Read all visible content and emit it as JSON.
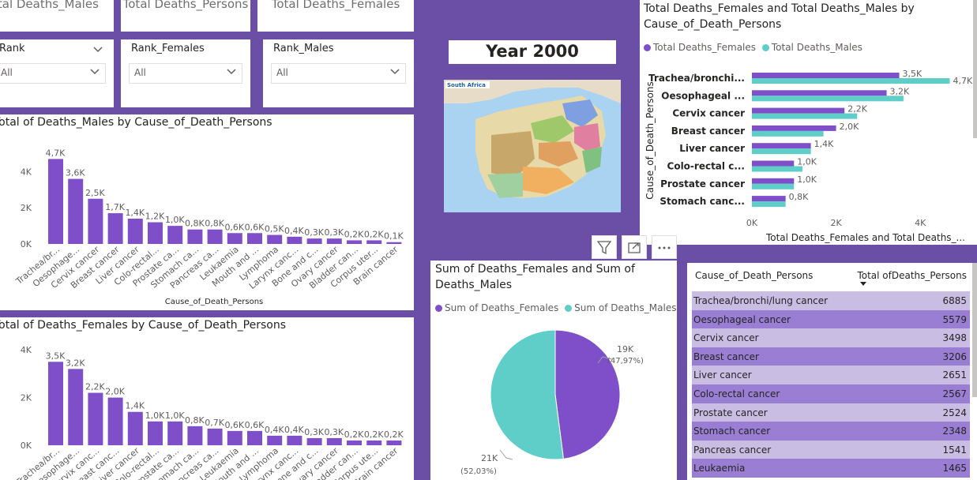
{
  "kpis": [
    "Total Deaths_Males",
    "Total Deaths_Persons",
    "Total Deaths_Females"
  ],
  "slicers": [
    {
      "label": "Rank",
      "value": "All"
    },
    {
      "label": "Rank_Females",
      "value": "All"
    },
    {
      "label": "Rank_Males",
      "value": "All"
    }
  ],
  "year_title": "Year 2000",
  "map_label": "South Africa",
  "colors": {
    "females": "#7E4FC9",
    "males": "#5FCDC8",
    "background": "#6B4FA6"
  },
  "males_chart": {
    "title": "Total of Deaths_Males by Cause_of_Death_Persons",
    "xlabel": "Cause_of_Death_Persons",
    "ticks": [
      "4K",
      "2K",
      "0K"
    ]
  },
  "females_chart": {
    "title": "Total of Deaths_Females by Cause_of_Death_Persons",
    "ticks": [
      "4K",
      "2K",
      "0K"
    ]
  },
  "hbar_chart": {
    "title_line1": "Total Deaths_Females and Total Deaths_Males by",
    "title_line2": "Cause_of_Death_Persons",
    "legend_females": "Total Deaths_Females",
    "legend_males": "Total  Deaths_Males",
    "ylabel": "Cause_of_Death_Persons",
    "xlabel": "Total Deaths_Females and Total Deaths_...",
    "xticks": [
      "0K",
      "2K",
      "4K"
    ]
  },
  "pie_chart": {
    "title_line1": "Sum of Deaths_Females and Sum of",
    "title_line2": "Deaths_Males",
    "legend_females": "Sum of Deaths_Females",
    "legend_males": "Sum of Deaths_Males",
    "females_label": "19K",
    "females_pct": "(47,97%)",
    "males_label": "21K",
    "males_pct": "(52,03%)"
  },
  "table": {
    "col1": "Cause_of_Death_Persons",
    "col2": "Total ofDeaths_Persons",
    "rows": [
      {
        "cause": "Trachea/bronchi/lung cancer",
        "total": "6885"
      },
      {
        "cause": "Oesophageal cancer",
        "total": "5579"
      },
      {
        "cause": "Cervix cancer",
        "total": "3498"
      },
      {
        "cause": "Breast cancer",
        "total": "3206"
      },
      {
        "cause": "Liver cancer",
        "total": "2651"
      },
      {
        "cause": "Colo-rectal cancer",
        "total": "2567"
      },
      {
        "cause": "Prostate cancer",
        "total": "2524"
      },
      {
        "cause": "Stomach cancer",
        "total": "2348"
      },
      {
        "cause": "Pancreas cancer",
        "total": "1541"
      },
      {
        "cause": "Leukaemia",
        "total": "1465"
      }
    ]
  },
  "chart_data": [
    {
      "type": "bar",
      "title": "Total of Deaths_Males by Cause_of_Death_Persons",
      "xlabel": "Cause_of_Death_Persons",
      "ylim": [
        0,
        5000
      ],
      "categories": [
        "Trachea/br...",
        "Oesophage...",
        "Cervix cancer",
        "Breast cancer",
        "Liver cancer",
        "Colo-rectal...",
        "Prostate ca...",
        "Stomach ca...",
        "Pancreas ca...",
        "Leukaemia",
        "Mouth and ...",
        "Lymphoma",
        "Larynx canc...",
        "Bone and c...",
        "Ovary cancer",
        "Bladder can...",
        "Corpus uter...",
        "Brain cancer"
      ],
      "values": [
        4700,
        3600,
        2500,
        1700,
        1400,
        1200,
        1000,
        800,
        800,
        600,
        600,
        500,
        400,
        300,
        300,
        200,
        200,
        100
      ],
      "labels": [
        "4,7K",
        "3,6K",
        "2,5K",
        "1,7K",
        "1,4K",
        "1,2K",
        "1,0K",
        "0,8K",
        "0,8K",
        "0,6K",
        "0,6K",
        "0,5K",
        "0,4K",
        "0,3K",
        "0,3K",
        "0,2K",
        "0,2K",
        "0,1K"
      ]
    },
    {
      "type": "bar",
      "title": "Total of Deaths_Females by Cause_of_Death_Persons",
      "ylim": [
        0,
        4500
      ],
      "categories": [
        "Trachea/br...",
        "Oesophage...",
        "Cervix canc...",
        "Breast canc...",
        "Liver cancer",
        "Colo-rectal...",
        "Prostate ca...",
        "Stomach ca...",
        "Pancreas ca...",
        "Leukaemia",
        "Mouth and ...",
        "Lymphoma",
        "Larynx canc...",
        "Bone and c...",
        "Ovary cancer",
        "Bladder can...",
        "Corpus ute...",
        "Brain cancer"
      ],
      "values": [
        3500,
        3200,
        2200,
        2000,
        1400,
        1000,
        1000,
        800,
        700,
        600,
        600,
        400,
        400,
        300,
        300,
        200,
        200,
        200
      ],
      "labels": [
        "3,5K",
        "3,2K",
        "2,2K",
        "2,0K",
        "1,4K",
        "1,0K",
        "1,0K",
        "0,8K",
        "0,7K",
        "0,6K",
        "0,6K",
        "0,4K",
        "0,4K",
        "0,3K",
        "0,3K",
        "0,2K",
        "0,2K",
        "0,2K"
      ]
    },
    {
      "type": "bar",
      "orientation": "horizontal",
      "title": "Total Deaths_Females and Total Deaths_Males by Cause_of_Death_Persons",
      "xlim": [
        0,
        5000
      ],
      "categories": [
        "Trachea/bronchi...",
        "Oesophageal ...",
        "Cervix cancer",
        "Breast cancer",
        "Liver cancer",
        "Colo-rectal c...",
        "Prostate cancer",
        "Stomach canc..."
      ],
      "series": [
        {
          "name": "Total Deaths_Females",
          "values": [
            3500,
            3200,
            2200,
            2000,
            1400,
            1000,
            1000,
            800
          ],
          "labels": [
            "3,5K",
            "3,2K",
            "2,2K",
            "2,0K",
            "1,4K",
            "1,0K",
            "1,0K",
            "0,8K"
          ]
        },
        {
          "name": "Total  Deaths_Males",
          "values": [
            4700,
            3600,
            2500,
            1700,
            1400,
            1200,
            1000,
            800
          ],
          "labels": [
            "4,7K",
            "",
            "",
            "",
            "",
            "",
            "",
            ""
          ]
        }
      ]
    },
    {
      "type": "pie",
      "title": "Sum of Deaths_Females and Sum of Deaths_Males",
      "series": [
        {
          "name": "Sum of Deaths_Females",
          "value": 19000,
          "percent": 47.97
        },
        {
          "name": "Sum of Deaths_Males",
          "value": 21000,
          "percent": 52.03
        }
      ]
    }
  ]
}
